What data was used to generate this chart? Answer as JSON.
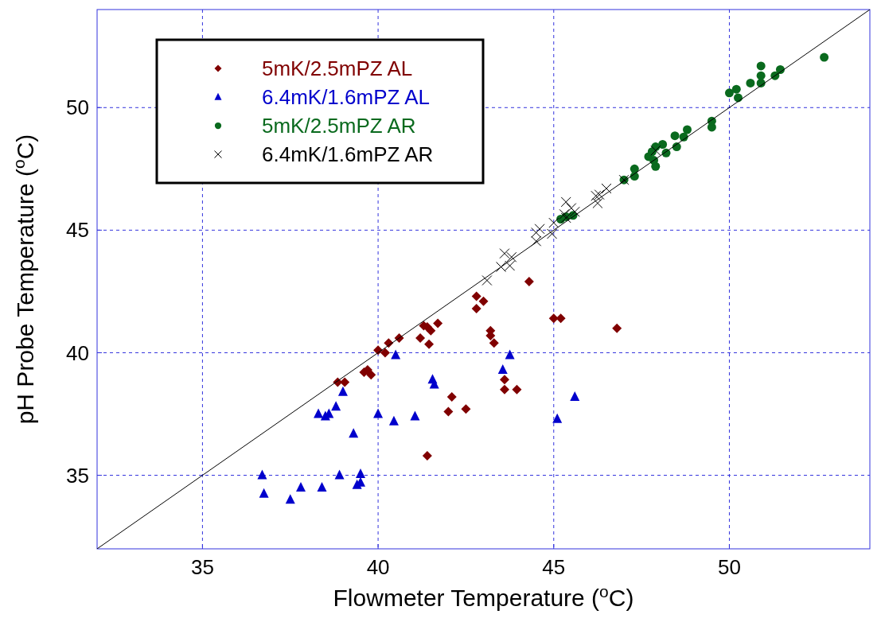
{
  "chart_data": {
    "type": "scatter",
    "xlabel": "Flowmeter Temperature ($^{o}$C)",
    "ylabel": "pH Probe Temperature ($^{o}$C)",
    "xlim": [
      32,
      54
    ],
    "ylim": [
      32,
      54
    ],
    "xticks": [
      35,
      40,
      45,
      50
    ],
    "yticks": [
      35,
      40,
      45,
      50
    ],
    "grid": true,
    "legend": "top left",
    "series": [
      {
        "name": "5mK/2.5mPZ AL",
        "color": "#800000",
        "marker": "diamond",
        "x": [
          38.85,
          39.05,
          39.6,
          39.7,
          39.8,
          40.0,
          40.2,
          40.3,
          40.6,
          41.2,
          41.3,
          41.4,
          41.5,
          41.45,
          41.7,
          42.8,
          43.0,
          42.8,
          43.2,
          43.2,
          43.3,
          43.6,
          43.6,
          43.95,
          42.1,
          42.0,
          42.5,
          41.4,
          44.3,
          45.0,
          45.2,
          46.8
        ],
        "values": [
          38.8,
          38.8,
          39.2,
          39.3,
          39.1,
          40.1,
          40.0,
          40.4,
          40.6,
          40.6,
          41.1,
          41.05,
          40.9,
          40.35,
          41.2,
          42.3,
          42.1,
          41.8,
          40.9,
          40.7,
          40.4,
          38.9,
          38.5,
          38.5,
          38.2,
          37.6,
          37.7,
          35.8,
          42.9,
          41.4,
          41.4,
          41.0
        ]
      },
      {
        "name": "6.4mK/1.6mPZ AL",
        "color": "#0000cc",
        "marker": "triangle",
        "x": [
          40.5,
          43.75,
          43.55,
          41.55,
          41.6,
          39.0,
          38.8,
          38.5,
          38.6,
          38.3,
          40.0,
          40.45,
          41.05,
          39.3,
          45.1,
          45.6,
          36.7,
          36.75,
          37.5,
          37.8,
          38.4,
          38.9,
          39.5,
          39.5,
          39.4
        ],
        "values": [
          39.9,
          39.9,
          39.3,
          38.9,
          38.7,
          38.4,
          37.8,
          37.4,
          37.5,
          37.5,
          37.5,
          37.2,
          37.4,
          36.7,
          37.3,
          38.2,
          35.0,
          34.25,
          34.0,
          34.5,
          34.5,
          35.0,
          35.05,
          34.7,
          34.6
        ]
      },
      {
        "name": "5mK/2.5mPZ AR",
        "color": "#0a6a1e",
        "marker": "circle",
        "x": [
          45.2,
          45.35,
          45.55,
          47.0,
          47.3,
          47.3,
          47.7,
          47.9,
          47.8,
          47.9,
          47.85,
          48.1,
          48.45,
          48.8,
          48.7,
          49.5,
          49.5,
          50.0,
          50.2,
          50.25,
          50.6,
          50.9,
          50.9,
          50.9,
          51.3,
          51.45,
          52.7,
          48.5,
          48.2
        ],
        "values": [
          45.45,
          45.55,
          45.6,
          47.05,
          47.5,
          47.2,
          48.0,
          48.4,
          48.2,
          47.6,
          47.85,
          48.5,
          48.85,
          49.1,
          48.8,
          49.2,
          49.45,
          50.6,
          50.75,
          50.4,
          51.0,
          51.0,
          51.7,
          51.3,
          51.3,
          51.55,
          52.05,
          48.4,
          48.15
        ]
      },
      {
        "name": "6.4mK/1.6mPZ AR",
        "color": "#000000",
        "marker": "cross",
        "x": [
          43.1,
          43.5,
          43.75,
          43.6,
          43.8,
          44.5,
          44.5,
          44.6,
          44.95,
          45.0,
          45.3,
          45.35,
          45.35,
          45.5,
          45.6,
          46.2,
          46.25,
          46.3,
          46.5,
          47.0,
          47.9
        ],
        "values": [
          42.95,
          43.5,
          43.55,
          44.05,
          43.9,
          44.55,
          44.9,
          45.05,
          44.85,
          45.3,
          45.65,
          46.15,
          45.5,
          45.9,
          45.75,
          46.4,
          46.1,
          46.45,
          46.7,
          47.05,
          48.25
        ]
      },
      {
        "type": "line",
        "color": "#000000",
        "marker": "none",
        "x": [
          32,
          54
        ],
        "values": [
          32,
          54
        ]
      }
    ]
  }
}
